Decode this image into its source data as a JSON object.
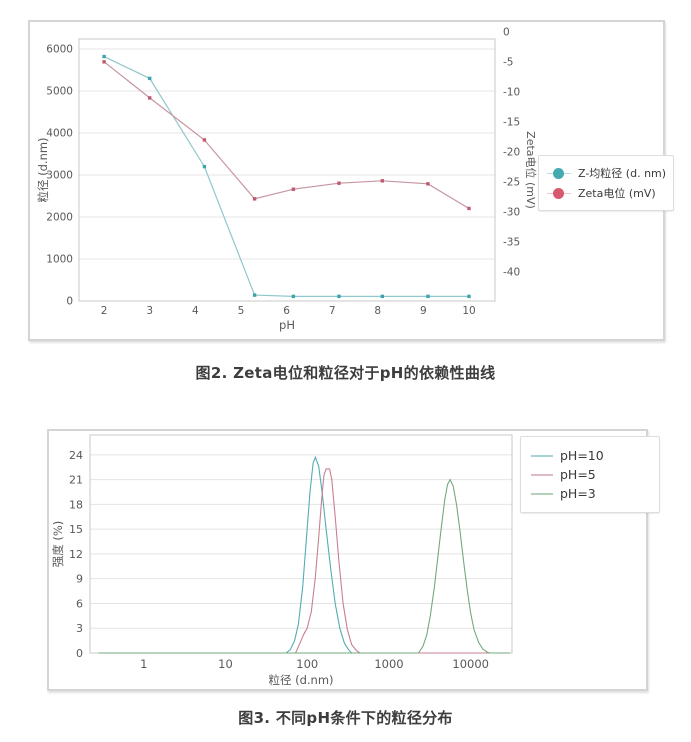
{
  "figures": [
    {
      "caption": "图2. Zeta电位和粒径对于pH的依赖性曲线"
    },
    {
      "caption": "图3. 不同pH条件下的粒径分布"
    }
  ],
  "colors": {
    "grid": "#e4e4e4",
    "frame": "#c9c9c9",
    "tick_text": "#595959"
  },
  "chart_data": [
    {
      "type": "line",
      "title": "",
      "xlabel": "pH",
      "ylabel_left": "粒径 (d.nm)",
      "ylabel_right": "Zeta电位 (mV)",
      "x_ticks": [
        2,
        3,
        4,
        5,
        6,
        7,
        8,
        9,
        10
      ],
      "x_range": [
        1.45,
        10.57
      ],
      "y_left_ticks": [
        0,
        1000,
        2000,
        3000,
        4000,
        5000,
        6000
      ],
      "y_left_range": [
        0,
        6238
      ],
      "y_right_ticks": [
        0,
        -5,
        -10,
        -15,
        -20,
        -25,
        -30,
        -35,
        -40
      ],
      "y_right_range": [
        -1.2,
        -44.8
      ],
      "grid": true,
      "legend_position": "right",
      "x": [
        2,
        3,
        4.2,
        5.3,
        6.15,
        7.15,
        8.1,
        9.1,
        10
      ],
      "series": [
        {
          "name": "Z-均粒径 (d. nm)",
          "axis": "left",
          "line_color": "#8fc8ca",
          "marker_color": "#3fa3ab",
          "values": [
            5820,
            5300,
            3200,
            140,
            110,
            110,
            110,
            110,
            110
          ]
        },
        {
          "name": "Zeta电位 (mV)",
          "axis": "right",
          "line_color": "#c795a0",
          "marker_color": "#c0586f",
          "values": [
            -5,
            -11,
            -18,
            -27.8,
            -26.2,
            -25.2,
            -24.8,
            -25.3,
            -29.4
          ]
        }
      ],
      "legend": [
        {
          "label": "Z-均粒径 (d. nm)",
          "dot_color": "#45a9b2",
          "line_color": "#b9dcde"
        },
        {
          "label": "Zeta电位 (mV)",
          "dot_color": "#d8586f",
          "line_color": "#e8c7cd"
        }
      ]
    },
    {
      "type": "line-logx",
      "title": "",
      "xlabel": "粒径 (d.nm)",
      "ylabel": "强度 (%)",
      "x_ticks": [
        1,
        10,
        100,
        1000,
        10000
      ],
      "x_range": [
        0.22,
        32000
      ],
      "y_ticks": [
        0,
        3,
        6,
        9,
        12,
        15,
        18,
        21,
        24
      ],
      "y_range": [
        0,
        26.4
      ],
      "grid": true,
      "legend_position": "top-right",
      "series": [
        {
          "name": "pH=10",
          "line_color": "#53acb3",
          "swatch_color": "#a9d2d5",
          "peak_summary": "peak ~23.7% at ~125 nm",
          "points": [
            [
              0.28,
              0
            ],
            [
              55,
              0
            ],
            [
              62,
              0.4
            ],
            [
              70,
              1.5
            ],
            [
              78,
              3.5
            ],
            [
              88,
              8
            ],
            [
              98,
              14
            ],
            [
              108,
              19.5
            ],
            [
              118,
              23
            ],
            [
              126,
              23.7
            ],
            [
              138,
              22.6
            ],
            [
              152,
              19.5
            ],
            [
              170,
              15
            ],
            [
              195,
              10
            ],
            [
              220,
              6
            ],
            [
              250,
              3
            ],
            [
              285,
              1.2
            ],
            [
              320,
              0.4
            ],
            [
              350,
              0
            ],
            [
              30000,
              0
            ]
          ]
        },
        {
          "name": "pH=5",
          "line_color": "#c77f91",
          "swatch_color": "#e0bcc6",
          "peak_summary": "peak ~22.3% at ~160-190 nm",
          "points": [
            [
              0.28,
              0
            ],
            [
              72,
              0
            ],
            [
              80,
              1
            ],
            [
              90,
              2.2
            ],
            [
              100,
              3
            ],
            [
              112,
              5
            ],
            [
              125,
              9
            ],
            [
              138,
              14
            ],
            [
              150,
              18.5
            ],
            [
              160,
              21.5
            ],
            [
              170,
              22.3
            ],
            [
              188,
              22.3
            ],
            [
              200,
              21
            ],
            [
              220,
              16.5
            ],
            [
              245,
              11
            ],
            [
              275,
              6
            ],
            [
              310,
              2.8
            ],
            [
              350,
              1
            ],
            [
              400,
              0.3
            ],
            [
              440,
              0
            ],
            [
              30000,
              0
            ]
          ]
        },
        {
          "name": "pH=3",
          "line_color": "#73a97e",
          "swatch_color": "#b4d2ba",
          "peak_summary": "peak ~21% at ~5500 nm",
          "points": [
            [
              0.28,
              0
            ],
            [
              2300,
              0
            ],
            [
              2600,
              0.8
            ],
            [
              2900,
              2.2
            ],
            [
              3200,
              4.5
            ],
            [
              3600,
              8
            ],
            [
              4000,
              12
            ],
            [
              4400,
              15.5
            ],
            [
              4800,
              18.5
            ],
            [
              5200,
              20.4
            ],
            [
              5600,
              21
            ],
            [
              6100,
              20.2
            ],
            [
              6700,
              18
            ],
            [
              7400,
              14.8
            ],
            [
              8200,
              11
            ],
            [
              9100,
              7.5
            ],
            [
              10000,
              4.8
            ],
            [
              11000,
              2.8
            ],
            [
              12500,
              1.3
            ],
            [
              14000,
              0.5
            ],
            [
              16000,
              0.1
            ],
            [
              17000,
              0
            ],
            [
              30000,
              0
            ]
          ]
        }
      ]
    }
  ]
}
